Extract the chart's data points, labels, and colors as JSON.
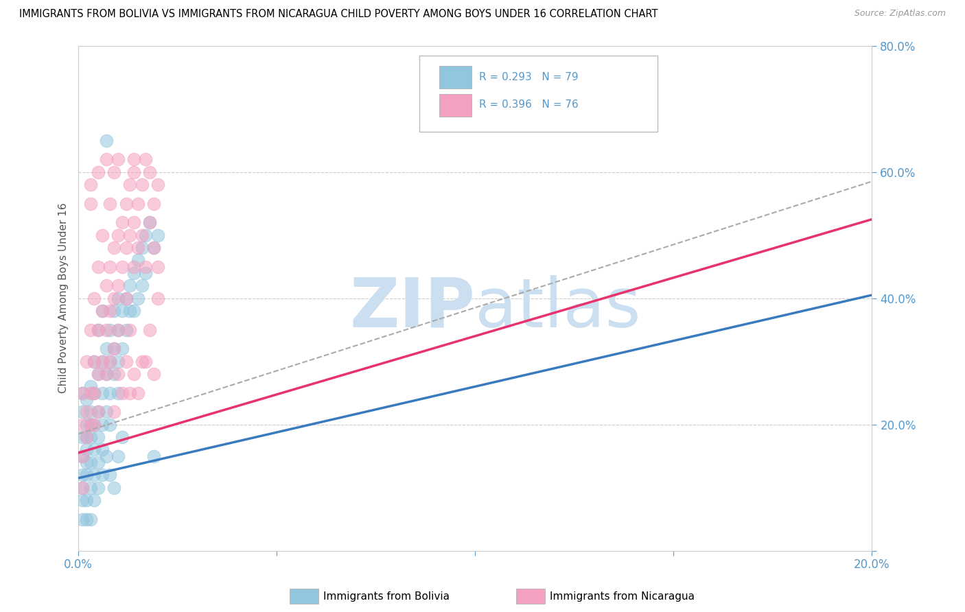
{
  "title": "IMMIGRANTS FROM BOLIVIA VS IMMIGRANTS FROM NICARAGUA CHILD POVERTY AMONG BOYS UNDER 16 CORRELATION CHART",
  "source": "Source: ZipAtlas.com",
  "ylabel": "Child Poverty Among Boys Under 16",
  "xlim": [
    0.0,
    0.2
  ],
  "ylim": [
    0.0,
    0.8
  ],
  "xticks": [
    0.0,
    0.05,
    0.1,
    0.15,
    0.2
  ],
  "yticks": [
    0.0,
    0.2,
    0.4,
    0.6,
    0.8
  ],
  "bolivia_R": 0.293,
  "bolivia_N": 79,
  "nicaragua_R": 0.396,
  "nicaragua_N": 76,
  "bolivia_color": "#92c5de",
  "nicaragua_color": "#f4a0c0",
  "bolivia_line_color": "#3a7bbf",
  "nicaragua_line_color": "#e8326e",
  "watermark_color": "#ccdff0",
  "tick_color": "#5599cc",
  "bolivia_line_intercept": 0.115,
  "bolivia_line_slope": 1.45,
  "nicaragua_line_intercept": 0.155,
  "nicaragua_line_slope": 1.85,
  "bolivia_scatter": [
    [
      0.001,
      0.18
    ],
    [
      0.001,
      0.22
    ],
    [
      0.001,
      0.15
    ],
    [
      0.001,
      0.12
    ],
    [
      0.001,
      0.1
    ],
    [
      0.001,
      0.08
    ],
    [
      0.001,
      0.25
    ],
    [
      0.002,
      0.2
    ],
    [
      0.002,
      0.16
    ],
    [
      0.002,
      0.12
    ],
    [
      0.002,
      0.18
    ],
    [
      0.002,
      0.08
    ],
    [
      0.002,
      0.24
    ],
    [
      0.002,
      0.14
    ],
    [
      0.003,
      0.22
    ],
    [
      0.003,
      0.18
    ],
    [
      0.003,
      0.14
    ],
    [
      0.003,
      0.1
    ],
    [
      0.003,
      0.26
    ],
    [
      0.003,
      0.2
    ],
    [
      0.004,
      0.25
    ],
    [
      0.004,
      0.2
    ],
    [
      0.004,
      0.16
    ],
    [
      0.004,
      0.12
    ],
    [
      0.004,
      0.3
    ],
    [
      0.005,
      0.28
    ],
    [
      0.005,
      0.22
    ],
    [
      0.005,
      0.18
    ],
    [
      0.005,
      0.35
    ],
    [
      0.005,
      0.14
    ],
    [
      0.006,
      0.3
    ],
    [
      0.006,
      0.25
    ],
    [
      0.006,
      0.2
    ],
    [
      0.006,
      0.16
    ],
    [
      0.006,
      0.38
    ],
    [
      0.007,
      0.32
    ],
    [
      0.007,
      0.28
    ],
    [
      0.007,
      0.22
    ],
    [
      0.007,
      0.65
    ],
    [
      0.008,
      0.3
    ],
    [
      0.008,
      0.25
    ],
    [
      0.008,
      0.2
    ],
    [
      0.008,
      0.35
    ],
    [
      0.009,
      0.32
    ],
    [
      0.009,
      0.28
    ],
    [
      0.009,
      0.38
    ],
    [
      0.01,
      0.35
    ],
    [
      0.01,
      0.3
    ],
    [
      0.01,
      0.25
    ],
    [
      0.01,
      0.4
    ],
    [
      0.011,
      0.38
    ],
    [
      0.011,
      0.32
    ],
    [
      0.012,
      0.4
    ],
    [
      0.012,
      0.35
    ],
    [
      0.013,
      0.42
    ],
    [
      0.013,
      0.38
    ],
    [
      0.014,
      0.44
    ],
    [
      0.014,
      0.38
    ],
    [
      0.015,
      0.46
    ],
    [
      0.015,
      0.4
    ],
    [
      0.016,
      0.48
    ],
    [
      0.016,
      0.42
    ],
    [
      0.017,
      0.5
    ],
    [
      0.017,
      0.44
    ],
    [
      0.018,
      0.52
    ],
    [
      0.019,
      0.48
    ],
    [
      0.019,
      0.15
    ],
    [
      0.02,
      0.5
    ],
    [
      0.004,
      0.08
    ],
    [
      0.003,
      0.05
    ],
    [
      0.002,
      0.05
    ],
    [
      0.001,
      0.05
    ],
    [
      0.005,
      0.1
    ],
    [
      0.006,
      0.12
    ],
    [
      0.007,
      0.15
    ],
    [
      0.008,
      0.12
    ],
    [
      0.009,
      0.1
    ],
    [
      0.01,
      0.15
    ],
    [
      0.011,
      0.18
    ]
  ],
  "nicaragua_scatter": [
    [
      0.001,
      0.2
    ],
    [
      0.001,
      0.15
    ],
    [
      0.001,
      0.25
    ],
    [
      0.001,
      0.1
    ],
    [
      0.002,
      0.22
    ],
    [
      0.002,
      0.18
    ],
    [
      0.002,
      0.3
    ],
    [
      0.003,
      0.25
    ],
    [
      0.003,
      0.2
    ],
    [
      0.003,
      0.35
    ],
    [
      0.003,
      0.55
    ],
    [
      0.004,
      0.3
    ],
    [
      0.004,
      0.25
    ],
    [
      0.004,
      0.4
    ],
    [
      0.004,
      0.2
    ],
    [
      0.005,
      0.35
    ],
    [
      0.005,
      0.28
    ],
    [
      0.005,
      0.45
    ],
    [
      0.005,
      0.22
    ],
    [
      0.006,
      0.38
    ],
    [
      0.006,
      0.3
    ],
    [
      0.006,
      0.5
    ],
    [
      0.007,
      0.42
    ],
    [
      0.007,
      0.35
    ],
    [
      0.007,
      0.28
    ],
    [
      0.008,
      0.45
    ],
    [
      0.008,
      0.38
    ],
    [
      0.008,
      0.55
    ],
    [
      0.008,
      0.3
    ],
    [
      0.009,
      0.48
    ],
    [
      0.009,
      0.4
    ],
    [
      0.009,
      0.6
    ],
    [
      0.009,
      0.32
    ],
    [
      0.01,
      0.5
    ],
    [
      0.01,
      0.42
    ],
    [
      0.01,
      0.35
    ],
    [
      0.01,
      0.62
    ],
    [
      0.011,
      0.52
    ],
    [
      0.011,
      0.45
    ],
    [
      0.012,
      0.55
    ],
    [
      0.012,
      0.48
    ],
    [
      0.012,
      0.4
    ],
    [
      0.013,
      0.58
    ],
    [
      0.013,
      0.5
    ],
    [
      0.013,
      0.35
    ],
    [
      0.014,
      0.6
    ],
    [
      0.014,
      0.52
    ],
    [
      0.014,
      0.45
    ],
    [
      0.015,
      0.55
    ],
    [
      0.015,
      0.48
    ],
    [
      0.016,
      0.58
    ],
    [
      0.016,
      0.5
    ],
    [
      0.017,
      0.62
    ],
    [
      0.017,
      0.3
    ],
    [
      0.018,
      0.6
    ],
    [
      0.018,
      0.52
    ],
    [
      0.019,
      0.55
    ],
    [
      0.019,
      0.48
    ],
    [
      0.02,
      0.58
    ],
    [
      0.02,
      0.45
    ],
    [
      0.003,
      0.58
    ],
    [
      0.005,
      0.6
    ],
    [
      0.007,
      0.62
    ],
    [
      0.009,
      0.22
    ],
    [
      0.01,
      0.28
    ],
    [
      0.011,
      0.25
    ],
    [
      0.012,
      0.3
    ],
    [
      0.013,
      0.25
    ],
    [
      0.014,
      0.28
    ],
    [
      0.015,
      0.25
    ],
    [
      0.016,
      0.3
    ],
    [
      0.017,
      0.45
    ],
    [
      0.018,
      0.35
    ],
    [
      0.019,
      0.28
    ],
    [
      0.02,
      0.4
    ],
    [
      0.014,
      0.62
    ]
  ]
}
